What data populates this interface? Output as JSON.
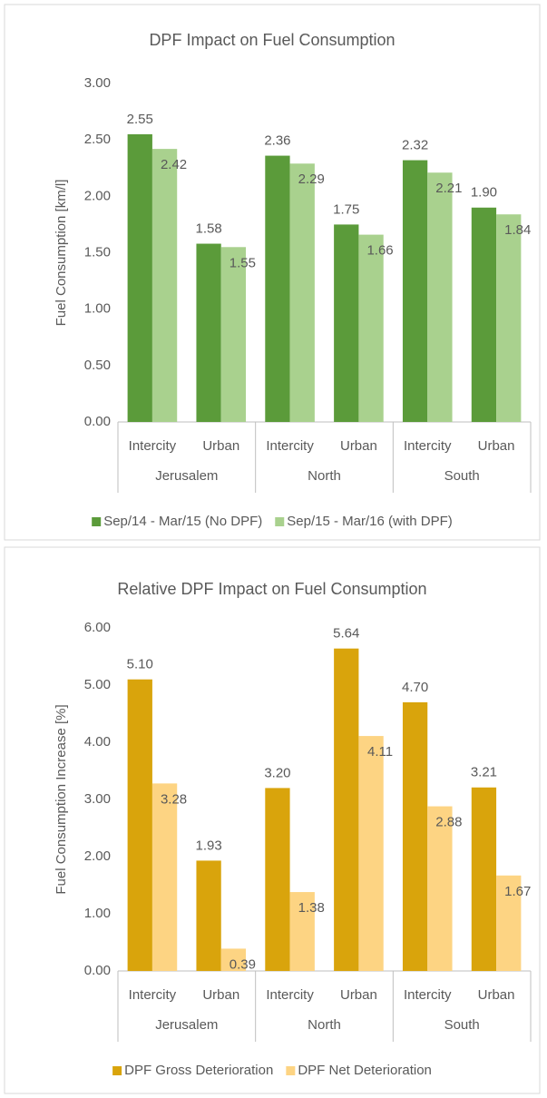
{
  "chart_data": [
    {
      "type": "bar",
      "title": "DPF Impact on Fuel Consumption",
      "y_label": "Fuel Consumption [km/l]",
      "categories": [
        "Intercity",
        "Urban",
        "Intercity",
        "Urban",
        "Intercity",
        "Urban"
      ],
      "groups": [
        "Jerusalem",
        "North",
        "South"
      ],
      "series": [
        {
          "name": "Sep/14 - Mar/15 (No DPF)",
          "color": "#5b9b3a",
          "values": [
            2.55,
            1.58,
            2.36,
            1.75,
            2.32,
            1.9
          ],
          "value_labels": [
            "2.55",
            "1.58",
            "2.36",
            "1.75",
            "2.32",
            "1.90"
          ]
        },
        {
          "name": "Sep/15 - Mar/16 (with DPF)",
          "color": "#a9d18e",
          "values": [
            2.42,
            1.55,
            2.29,
            1.66,
            2.21,
            1.84
          ],
          "value_labels": [
            "2.42",
            "1.55",
            "2.29",
            "1.66",
            "2.21",
            "1.84"
          ]
        }
      ],
      "ylim": [
        0,
        3
      ],
      "yticks": [
        {
          "value": 0,
          "label": "0.00"
        },
        {
          "value": 0.5,
          "label": "0.50"
        },
        {
          "value": 1,
          "label": "1.00"
        },
        {
          "value": 1.5,
          "label": "1.50"
        },
        {
          "value": 2,
          "label": "2.00"
        },
        {
          "value": 2.5,
          "label": "2.50"
        },
        {
          "value": 3,
          "label": "3.00"
        }
      ],
      "legend": "bottom"
    },
    {
      "type": "bar",
      "title": "Relative DPF Impact on Fuel Consumption",
      "y_label": "Fuel Consumption Increase [%]",
      "categories": [
        "Intercity",
        "Urban",
        "Intercity",
        "Urban",
        "Intercity",
        "Urban"
      ],
      "groups": [
        "Jerusalem",
        "North",
        "South"
      ],
      "series": [
        {
          "name": "DPF Gross Deterioration",
          "color": "#d9a40c",
          "values": [
            5.1,
            1.93,
            3.2,
            5.64,
            4.7,
            3.21
          ],
          "value_labels": [
            "5.10",
            "1.93",
            "3.20",
            "5.64",
            "4.70",
            "3.21"
          ]
        },
        {
          "name": "DPF Net Deterioration",
          "color": "#fdd483",
          "values": [
            3.28,
            0.39,
            1.38,
            4.11,
            2.88,
            1.67
          ],
          "value_labels": [
            "3.28",
            "0.39",
            "1.38",
            "4.11",
            "2.88",
            "1.67"
          ]
        }
      ],
      "ylim": [
        0,
        6
      ],
      "yticks": [
        {
          "value": 0,
          "label": "0.00"
        },
        {
          "value": 1,
          "label": "1.00"
        },
        {
          "value": 2,
          "label": "2.00"
        },
        {
          "value": 3,
          "label": "3.00"
        },
        {
          "value": 4,
          "label": "4.00"
        },
        {
          "value": 5,
          "label": "5.00"
        },
        {
          "value": 6,
          "label": "6.00"
        }
      ],
      "legend": "bottom"
    }
  ]
}
